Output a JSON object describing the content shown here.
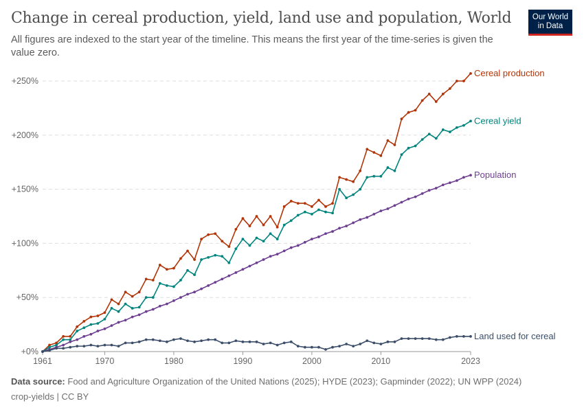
{
  "header": {
    "title": "Change in cereal production, yield, land use and population, World",
    "subtitle": "All figures are indexed to the start year of the timeline. This means the first year of the time-series is given the value zero.",
    "logo": "Our World in Data"
  },
  "footer": {
    "source_label": "Data source:",
    "source": "Food and Agriculture Organization of the United Nations (2025); HYDE (2023); Gapminder (2022); UN WPP (2024)",
    "slug": "crop-yields | CC BY"
  },
  "chart_data": {
    "type": "line",
    "title": "Change in cereal production, yield, land use and population, World",
    "xlim": [
      1961,
      2023
    ],
    "ylim": [
      0,
      250
    ],
    "x_ticks": [
      "1961",
      "1970",
      "1980",
      "1990",
      "2000",
      "2010",
      "2023"
    ],
    "y_ticks": [
      "+0%",
      "+50%",
      "+100%",
      "+150%",
      "+200%",
      "+250%"
    ],
    "grid": "horizontal dashed",
    "legend": "line-end labels",
    "x_start": 1961,
    "series": [
      {
        "name": "Cereal production",
        "color": "#b13507",
        "values": [
          0,
          6,
          8,
          14,
          14,
          23,
          28,
          32,
          33,
          36,
          48,
          44,
          55,
          51,
          55,
          67,
          66,
          80,
          76,
          77,
          86,
          93,
          85,
          104,
          108,
          109,
          102,
          97,
          113,
          123,
          116,
          125,
          117,
          125,
          115,
          134,
          139,
          137,
          137,
          134,
          140,
          134,
          137,
          161,
          159,
          157,
          167,
          187,
          184,
          181,
          195,
          191,
          215,
          221,
          223,
          232,
          238,
          231,
          238,
          243,
          250,
          250,
          257
        ]
      },
      {
        "name": "Cereal yield",
        "color": "#00847e",
        "values": [
          0,
          4,
          6,
          11,
          11,
          19,
          22,
          25,
          26,
          30,
          40,
          37,
          44,
          40,
          41,
          50,
          50,
          63,
          61,
          60,
          66,
          75,
          71,
          85,
          87,
          89,
          88,
          82,
          95,
          104,
          98,
          105,
          102,
          109,
          104,
          117,
          121,
          126,
          129,
          127,
          131,
          129,
          128,
          150,
          142,
          145,
          150,
          161,
          162,
          162,
          170,
          167,
          182,
          188,
          190,
          196,
          201,
          197,
          205,
          203,
          207,
          209,
          213
        ]
      },
      {
        "name": "Population",
        "color": "#6d3e91",
        "values": [
          0,
          2,
          4,
          6,
          9,
          11,
          14,
          16,
          19,
          21,
          24,
          27,
          29,
          32,
          34,
          37,
          39,
          42,
          44,
          47,
          50,
          53,
          55,
          58,
          61,
          64,
          67,
          70,
          73,
          76,
          79,
          82,
          85,
          88,
          90,
          93,
          96,
          98,
          101,
          104,
          106,
          109,
          111,
          114,
          116,
          119,
          122,
          124,
          127,
          130,
          132,
          135,
          138,
          141,
          143,
          146,
          149,
          151,
          154,
          156,
          158,
          161,
          163
        ]
      },
      {
        "name": "Land used for cereal",
        "color": "#3b4d68",
        "values": [
          0,
          1,
          3,
          3,
          4,
          5,
          5,
          6,
          5,
          6,
          6,
          5,
          8,
          8,
          9,
          11,
          11,
          10,
          9,
          11,
          12,
          10,
          9,
          10,
          11,
          11,
          8,
          8,
          10,
          9,
          9,
          9,
          7,
          8,
          6,
          8,
          9,
          5,
          4,
          4,
          4,
          2,
          4,
          5,
          7,
          5,
          7,
          10,
          8,
          7,
          9,
          9,
          12,
          12,
          12,
          12,
          12,
          11,
          11,
          13,
          14,
          14,
          14
        ]
      }
    ]
  }
}
